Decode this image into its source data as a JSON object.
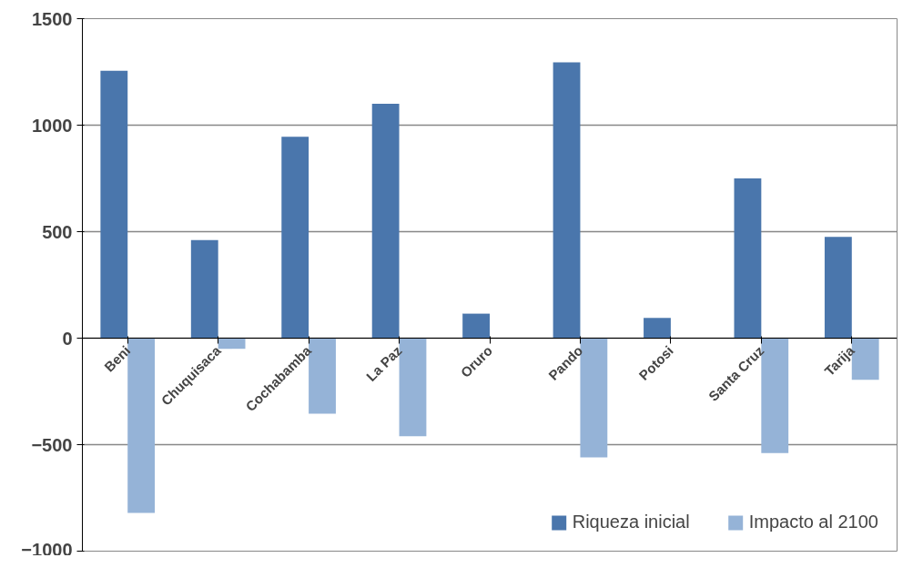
{
  "chart_data": {
    "type": "bar",
    "categories": [
      "Beni",
      "Chuquisaca",
      "Cochabamba",
      "La Paz",
      "Oruro",
      "Pando",
      "Potosi",
      "Santa Cruz",
      "Tarija"
    ],
    "series": [
      {
        "name": "Riqueza inicial",
        "color": "#4a76ac",
        "values": [
          1255,
          460,
          945,
          1100,
          115,
          1295,
          95,
          750,
          475
        ]
      },
      {
        "name": "Impacto al 2100",
        "color": "#95b3d7",
        "values": [
          -820,
          -50,
          -355,
          -460,
          0,
          -560,
          0,
          -540,
          -195
        ]
      }
    ],
    "ylim": [
      -1000,
      1500
    ],
    "yticks": [
      -1000,
      -500,
      0,
      500,
      1000,
      1500
    ],
    "grid": "y",
    "legend": "bottom"
  }
}
